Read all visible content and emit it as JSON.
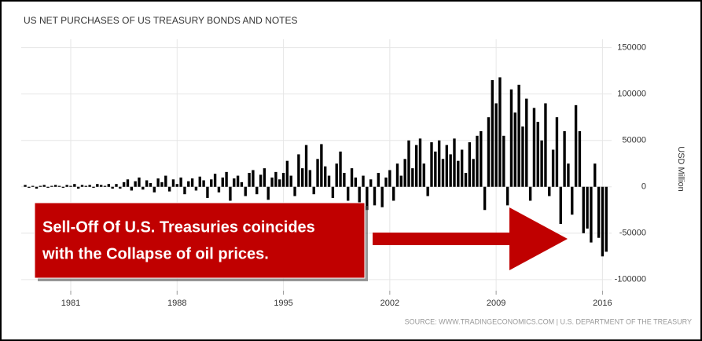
{
  "chart_data": {
    "type": "bar",
    "title": "US NET PURCHASES OF US TREASURY BONDS AND NOTES",
    "y_axis_label": "USD Million",
    "source": "SOURCE: WWW.TRADINGECONOMICS.COM | U.S. DEPARTMENT OF THE TREASURY",
    "annotation": [
      "Sell-Off Of U.S. Treasuries coincides",
      "with the Collapse of oil prices."
    ],
    "color": "#000000",
    "annotation_color": "#c00000",
    "grid": true,
    "xlim": [
      1977.74,
      2016.6
    ],
    "xticks": [
      1981,
      1988,
      1995,
      2002,
      2009,
      2016
    ],
    "ylim": [
      -112000,
      159000
    ],
    "yticks": [
      -100000,
      -50000,
      0,
      50000,
      100000,
      150000
    ],
    "x": [
      1978,
      1978.25,
      1978.5,
      1978.75,
      1979,
      1979.25,
      1979.5,
      1979.75,
      1980,
      1980.25,
      1980.5,
      1980.75,
      1981,
      1981.25,
      1981.5,
      1981.75,
      1982,
      1982.25,
      1982.5,
      1982.75,
      1983,
      1983.25,
      1983.5,
      1983.75,
      1984,
      1984.25,
      1984.5,
      1984.75,
      1985,
      1985.25,
      1985.5,
      1985.75,
      1986,
      1986.25,
      1986.5,
      1986.75,
      1987,
      1987.25,
      1987.5,
      1987.75,
      1988,
      1988.25,
      1988.5,
      1988.75,
      1989,
      1989.25,
      1989.5,
      1989.75,
      1990,
      1990.25,
      1990.5,
      1990.75,
      1991,
      1991.25,
      1991.5,
      1991.75,
      1992,
      1992.25,
      1992.5,
      1992.75,
      1993,
      1993.25,
      1993.5,
      1993.75,
      1994,
      1994.25,
      1994.5,
      1994.75,
      1995,
      1995.25,
      1995.5,
      1995.75,
      1996,
      1996.25,
      1996.5,
      1996.75,
      1997,
      1997.25,
      1997.5,
      1997.75,
      1998,
      1998.25,
      1998.5,
      1998.75,
      1999,
      1999.25,
      1999.5,
      1999.75,
      2000,
      2000.25,
      2000.5,
      2000.75,
      2001,
      2001.25,
      2001.5,
      2001.75,
      2002,
      2002.25,
      2002.5,
      2002.75,
      2003,
      2003.25,
      2003.5,
      2003.75,
      2004,
      2004.25,
      2004.5,
      2004.75,
      2005,
      2005.25,
      2005.5,
      2005.75,
      2006,
      2006.25,
      2006.5,
      2006.75,
      2007,
      2007.25,
      2007.5,
      2007.75,
      2008,
      2008.25,
      2008.5,
      2008.75,
      2009,
      2009.25,
      2009.5,
      2009.75,
      2010,
      2010.25,
      2010.5,
      2010.75,
      2011,
      2011.25,
      2011.5,
      2011.75,
      2012,
      2012.25,
      2012.5,
      2012.75,
      2013,
      2013.25,
      2013.5,
      2013.75,
      2014,
      2014.25,
      2014.5,
      2014.75,
      2015,
      2015.25,
      2015.5,
      2015.75,
      2016,
      2016.25
    ],
    "values": [
      2000,
      -1000,
      1000,
      -2000,
      1000,
      2000,
      -1000,
      1000,
      2000,
      1000,
      -1000,
      2000,
      1000,
      3000,
      -2000,
      2000,
      1000,
      2000,
      -1000,
      3000,
      2000,
      1000,
      3000,
      -2000,
      3000,
      -2000,
      5000,
      8000,
      -4000,
      6000,
      10000,
      -3000,
      7000,
      4000,
      -6000,
      9000,
      5000,
      12000,
      -5000,
      8000,
      3000,
      10000,
      -8000,
      6000,
      9000,
      -4000,
      11000,
      7000,
      -12000,
      8000,
      14000,
      -6000,
      10000,
      16000,
      -15000,
      9000,
      12000,
      5000,
      -10000,
      15000,
      18000,
      -8000,
      13000,
      20000,
      -14000,
      10000,
      16000,
      8000,
      15000,
      28000,
      12000,
      -10000,
      35000,
      20000,
      45000,
      18000,
      -8000,
      30000,
      46000,
      22000,
      12000,
      -12000,
      25000,
      38000,
      15000,
      -15000,
      20000,
      10000,
      -18000,
      12000,
      -25000,
      8000,
      -20000,
      15000,
      -22000,
      10000,
      18000,
      -15000,
      25000,
      12000,
      30000,
      50000,
      20000,
      45000,
      52000,
      25000,
      -10000,
      48000,
      38000,
      50000,
      30000,
      45000,
      35000,
      52000,
      28000,
      40000,
      15000,
      48000,
      30000,
      55000,
      60000,
      -25000,
      75000,
      115000,
      90000,
      118000,
      55000,
      -20000,
      105000,
      80000,
      110000,
      65000,
      95000,
      -15000,
      85000,
      70000,
      50000,
      90000,
      -10000,
      40000,
      75000,
      -40000,
      60000,
      25000,
      -30000,
      88000,
      60000,
      -50000,
      -45000,
      -60000,
      25000,
      -55000,
      -75000,
      -70000
    ]
  }
}
